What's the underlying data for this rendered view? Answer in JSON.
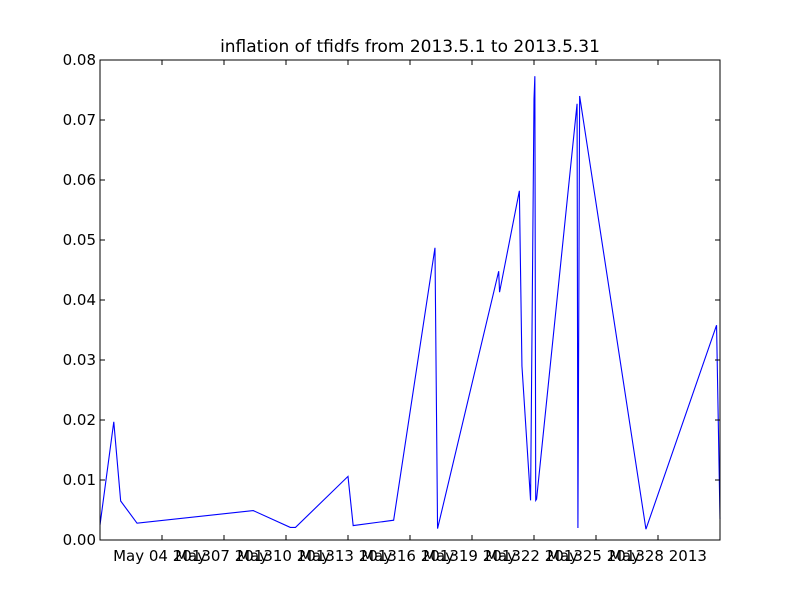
{
  "chart_data": {
    "type": "line",
    "title": "inflation of tfidfs from 2013.5.1 to 2013.5.31",
    "xlabel": "",
    "ylabel": "",
    "x_type": "date",
    "xlim": [
      "2013-05-01",
      "2013-05-31"
    ],
    "ylim": [
      0,
      0.08
    ],
    "x_ticks": [
      {
        "date": "2013-05-04",
        "label": "May 04 2013"
      },
      {
        "date": "2013-05-07",
        "label": "May 07 2013"
      },
      {
        "date": "2013-05-10",
        "label": "May 10 2013"
      },
      {
        "date": "2013-05-13",
        "label": "May 13 2013"
      },
      {
        "date": "2013-05-16",
        "label": "May 16 2013"
      },
      {
        "date": "2013-05-19",
        "label": "May 19 2013"
      },
      {
        "date": "2013-05-22",
        "label": "May 22 2013"
      },
      {
        "date": "2013-05-25",
        "label": "May 25 2013"
      },
      {
        "date": "2013-05-28",
        "label": "May 28 2013"
      }
    ],
    "y_ticks": [
      {
        "value": 0,
        "label": "0.00"
      },
      {
        "value": 0.01,
        "label": "0.01"
      },
      {
        "value": 0.02,
        "label": "0.02"
      },
      {
        "value": 0.03,
        "label": "0.03"
      },
      {
        "value": 0.04,
        "label": "0.04"
      },
      {
        "value": 0.05,
        "label": "0.05"
      },
      {
        "value": 0.06,
        "label": "0.06"
      },
      {
        "value": 0.07,
        "label": "0.07"
      },
      {
        "value": 0.08,
        "label": "0.08"
      }
    ],
    "grid": false,
    "legend": "none",
    "series": [
      {
        "color": "#0000ff",
        "x": [
          "2013-05-01 00:00",
          "2013-05-01 16:00",
          "2013-05-02 00:00",
          "2013-05-02 19:00",
          "2013-05-08 10:00",
          "2013-05-10 05:00",
          "2013-05-10 11:00",
          "2013-05-13 00:00",
          "2013-05-13 06:00",
          "2013-05-15 05:00",
          "2013-05-17 05:00",
          "2013-05-17 08:00",
          "2013-05-20 07:00",
          "2013-05-20 08:00",
          "2013-05-21 07:00",
          "2013-05-21 10:00",
          "2013-05-21 20:00",
          "2013-05-22 00:00",
          "2013-05-22 01:00",
          "2013-05-22 02:00",
          "2013-05-22 03:00",
          "2013-05-24 02:00",
          "2013-05-24 03:00",
          "2013-05-24 05:00",
          "2013-05-27 10:00",
          "2013-05-30 20:00",
          "2013-05-31 00:00"
        ],
        "y": [
          0.0025,
          0.0197,
          0.0065,
          0.0028,
          0.0049,
          0.0021,
          0.0021,
          0.0106,
          0.0024,
          0.0033,
          0.0487,
          0.0019,
          0.0448,
          0.0413,
          0.0582,
          0.029,
          0.0066,
          0.0735,
          0.0773,
          0.0066,
          0.0068,
          0.0727,
          0.002,
          0.074,
          0.0018,
          0.0358,
          0.0035
        ]
      }
    ]
  }
}
